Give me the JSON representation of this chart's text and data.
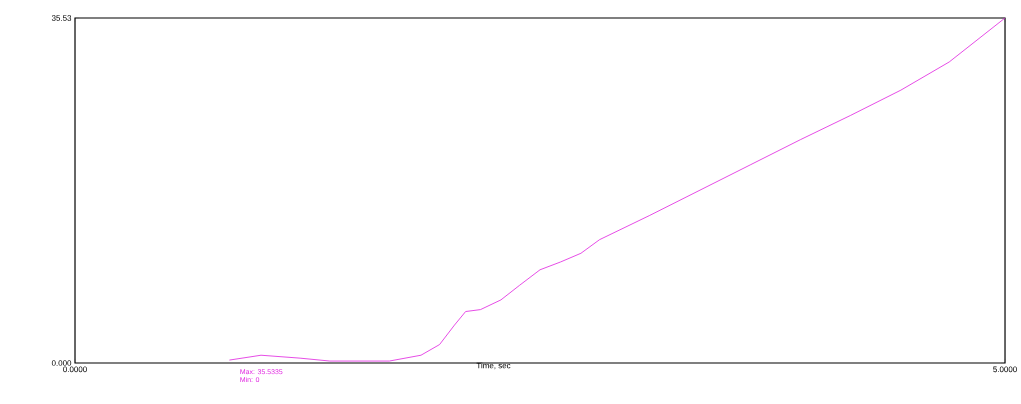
{
  "chart_data": {
    "type": "line",
    "x": [
      0.83,
      1.0,
      1.21,
      1.37,
      1.69,
      1.86,
      1.96,
      2.04,
      2.1,
      2.18,
      2.29,
      2.39,
      2.5,
      2.61,
      2.72,
      2.82,
      3.09,
      3.36,
      3.63,
      3.9,
      4.17,
      4.44,
      4.7,
      5.0
    ],
    "series": [
      {
        "color": "#e020e0",
        "values": [
          0.3,
          0.8,
          0.5,
          0.2,
          0.2,
          0.8,
          1.9,
          3.9,
          5.3,
          5.5,
          6.5,
          8.0,
          9.6,
          10.4,
          11.3,
          12.7,
          15.2,
          17.8,
          20.4,
          23.0,
          25.5,
          28.1,
          31.0,
          35.53
        ]
      }
    ],
    "xlim": [
      0,
      5
    ],
    "xticks": [
      {
        "value": 0,
        "label": "0.0000"
      },
      {
        "value": 5,
        "label": "5.0000"
      }
    ],
    "ylim": [
      0,
      35.53
    ],
    "yticks": [
      {
        "value": 0,
        "label": "0.000"
      },
      {
        "value": 35.53,
        "label": "35.53"
      }
    ],
    "xlabel": "Time, sec",
    "annotations": [
      "Max: 35.5335",
      "Min: 0"
    ],
    "marker": "none"
  }
}
